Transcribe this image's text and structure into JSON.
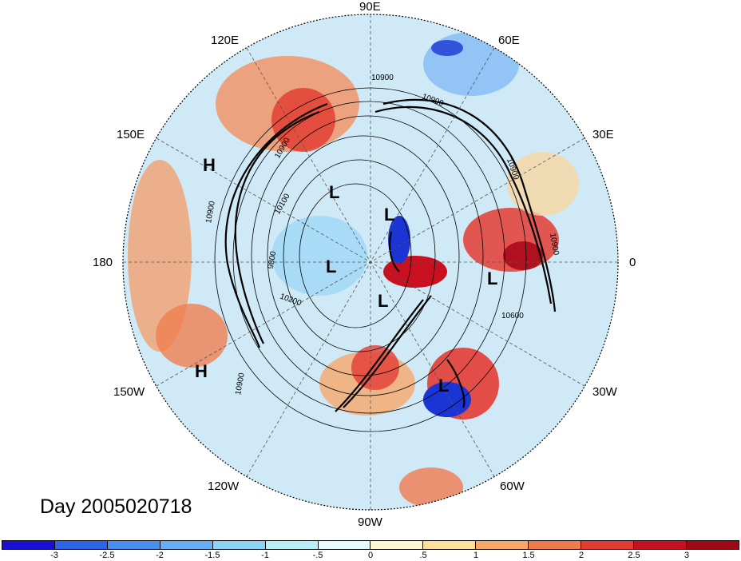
{
  "title": "Day 2005020718",
  "longitude_labels": [
    "90E",
    "60E",
    "30E",
    "0",
    "30W",
    "60W",
    "90W",
    "120W",
    "150W",
    "180",
    "150E",
    "120E"
  ],
  "pressure_systems": [
    "H",
    "H",
    "L",
    "L",
    "L",
    "L",
    "L",
    "L"
  ],
  "contour_labels": [
    "10900",
    "10900",
    "10900",
    "10900",
    "10900",
    "10900",
    "10900",
    "10100",
    "9800",
    "10200",
    "10600"
  ],
  "colorbar": {
    "ticks": [
      "-3",
      "-2.5",
      "-2",
      "-1.5",
      "-1",
      "-.5",
      "0",
      ".5",
      "1",
      "1.5",
      "2",
      "2.5",
      "3"
    ],
    "colors": [
      "#1a0fd4",
      "#2c63e8",
      "#4a8ef0",
      "#69aef5",
      "#8dd2f7",
      "#b9eef8",
      "#e6fbfd",
      "#fdf6d0",
      "#fde0a0",
      "#f6a86c",
      "#f07a50",
      "#e43c34",
      "#c81020",
      "#a00818"
    ]
  }
}
